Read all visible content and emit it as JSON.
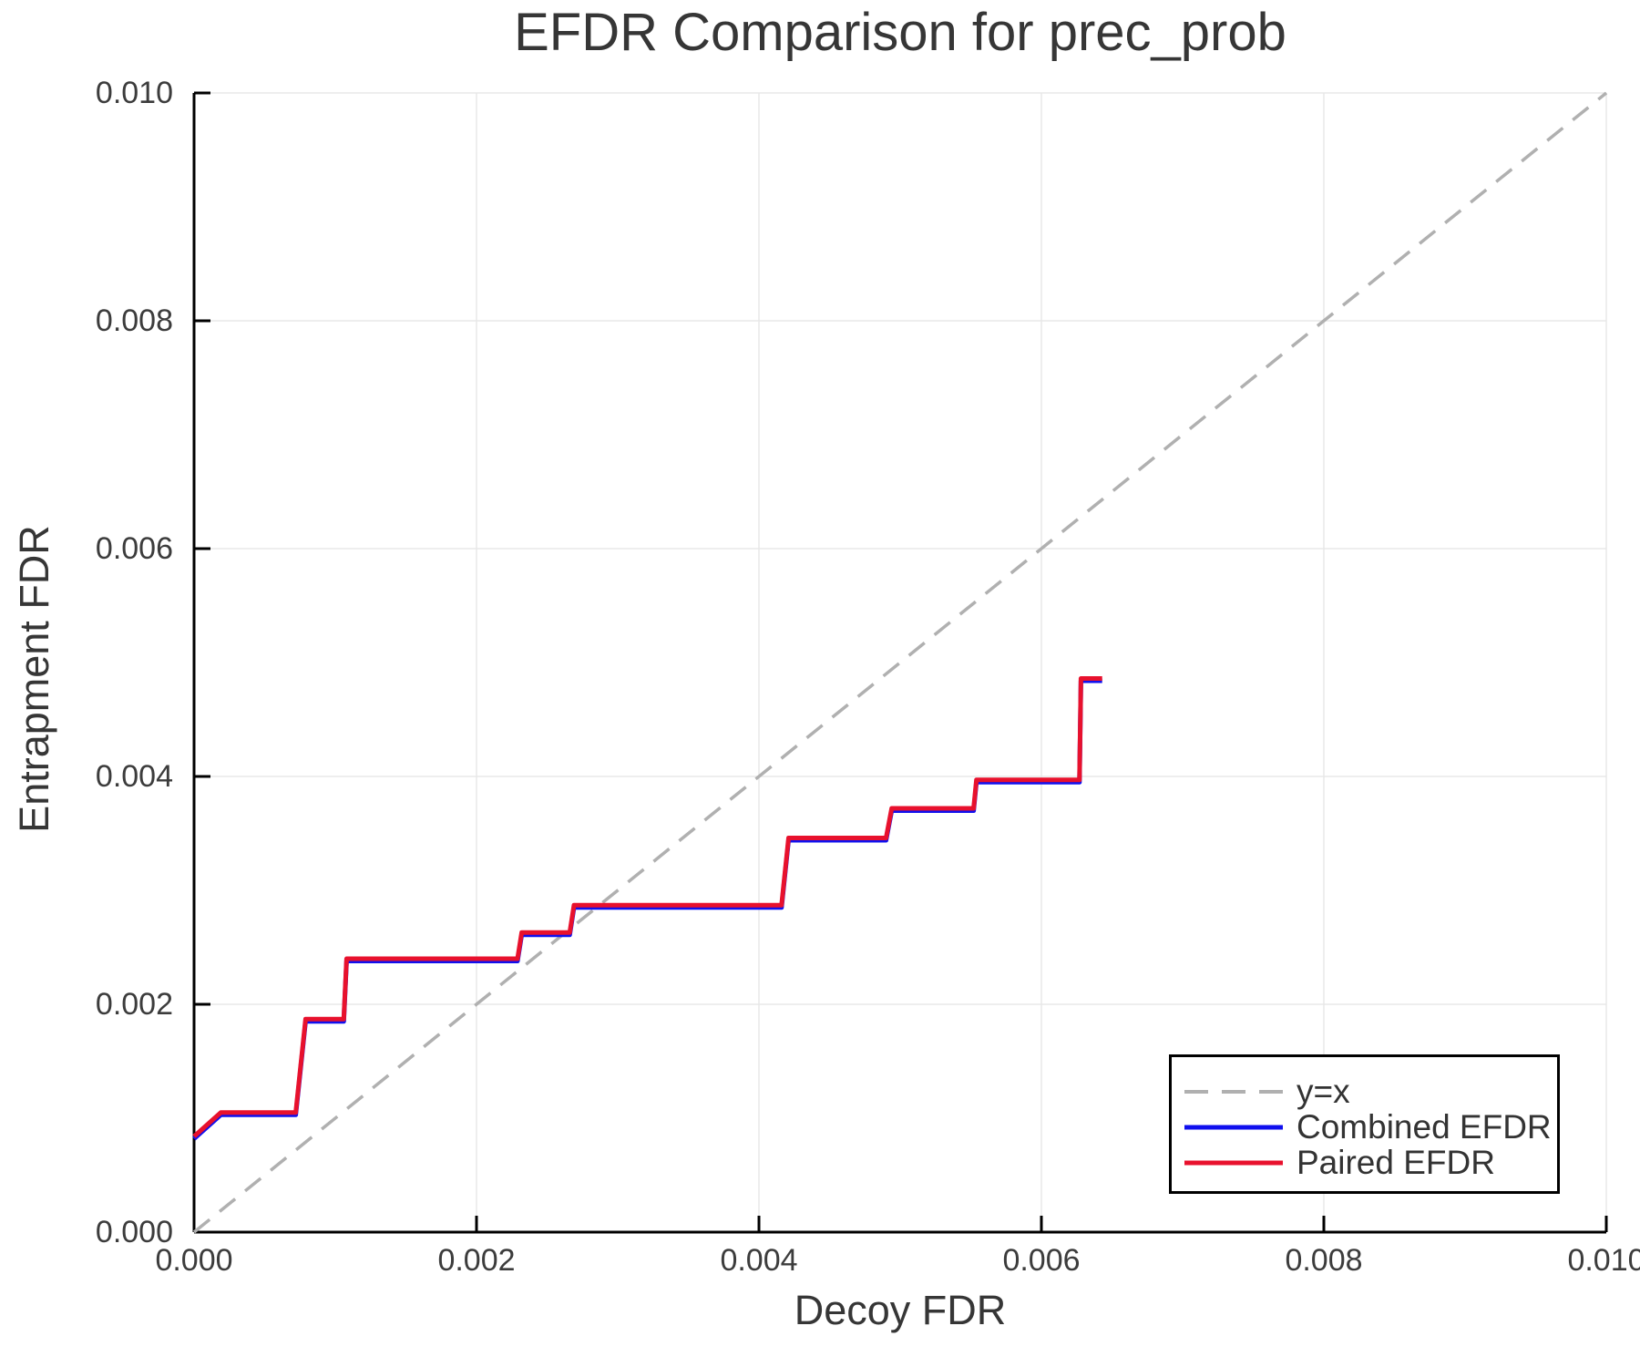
{
  "chart_data": {
    "type": "line",
    "title": "EFDR Comparison for prec_prob",
    "xlabel": "Decoy FDR",
    "ylabel": "Entrapment FDR",
    "xlim": [
      0.0,
      0.01
    ],
    "ylim": [
      0.0,
      0.01
    ],
    "grid": true,
    "legend_position": "bottom-right",
    "xticks": {
      "values": [
        0.0,
        0.002,
        0.004,
        0.006,
        0.008,
        0.01
      ],
      "labels": [
        "0.000",
        "0.002",
        "0.004",
        "0.006",
        "0.008",
        "0.010"
      ]
    },
    "yticks": {
      "values": [
        0.0,
        0.002,
        0.004,
        0.006,
        0.008,
        0.01
      ],
      "labels": [
        "0.000",
        "0.002",
        "0.004",
        "0.006",
        "0.008",
        "0.010"
      ]
    },
    "colors": {
      "reference": "#b0b0b0",
      "combined": "#1010ee",
      "paired": "#e8112d",
      "grid": "#e8e8e8",
      "spine": "#000000",
      "text": "#363636"
    },
    "series": [
      {
        "name": "y=x",
        "style": "dashed",
        "color": "#b0b0b0",
        "width": 3.5,
        "points": [
          [
            0.0,
            0.0
          ],
          [
            0.01,
            0.01
          ]
        ]
      },
      {
        "name": "Combined EFDR",
        "style": "solid",
        "color": "#1010ee",
        "width": 5,
        "points": [
          [
            0.0,
            0.00082
          ],
          [
            0.00019,
            0.00103
          ],
          [
            0.00072,
            0.00103
          ],
          [
            0.00079,
            0.00185
          ],
          [
            0.00106,
            0.00185
          ],
          [
            0.00108,
            0.00238
          ],
          [
            0.00229,
            0.00238
          ],
          [
            0.00232,
            0.00261
          ],
          [
            0.00266,
            0.00261
          ],
          [
            0.00269,
            0.00285
          ],
          [
            0.00416,
            0.00285
          ],
          [
            0.00421,
            0.00344
          ],
          [
            0.0049,
            0.00344
          ],
          [
            0.00494,
            0.0037
          ],
          [
            0.00552,
            0.0037
          ],
          [
            0.00554,
            0.00395
          ],
          [
            0.00627,
            0.00395
          ],
          [
            0.00628,
            0.00484
          ],
          [
            0.00643,
            0.00484
          ]
        ]
      },
      {
        "name": "Paired EFDR",
        "style": "solid",
        "color": "#e8112d",
        "width": 5,
        "points": [
          [
            0.0,
            0.00084
          ],
          [
            0.00019,
            0.00105
          ],
          [
            0.00072,
            0.00105
          ],
          [
            0.00079,
            0.00187
          ],
          [
            0.00106,
            0.00187
          ],
          [
            0.00108,
            0.0024
          ],
          [
            0.00229,
            0.0024
          ],
          [
            0.00232,
            0.00263
          ],
          [
            0.00266,
            0.00263
          ],
          [
            0.00269,
            0.00287
          ],
          [
            0.00416,
            0.00287
          ],
          [
            0.00421,
            0.00346
          ],
          [
            0.0049,
            0.00346
          ],
          [
            0.00494,
            0.00372
          ],
          [
            0.00552,
            0.00372
          ],
          [
            0.00554,
            0.00397
          ],
          [
            0.00627,
            0.00397
          ],
          [
            0.00628,
            0.00486
          ],
          [
            0.00643,
            0.00486
          ]
        ]
      }
    ]
  }
}
